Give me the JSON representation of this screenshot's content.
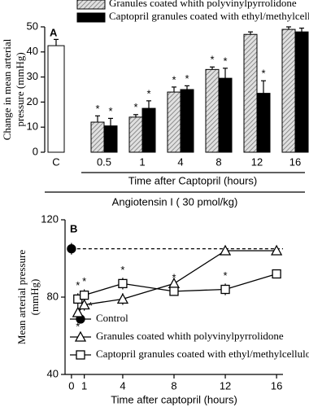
{
  "chart_data": [
    {
      "type": "bar",
      "panel": "A",
      "categories": [
        "C",
        "0.5",
        "1",
        "4",
        "8",
        "12",
        "16"
      ],
      "series": [
        {
          "color": "#ffffff",
          "values": [
            42.5,
            null,
            null,
            null,
            null,
            null,
            null
          ],
          "errors": [
            2.5,
            null,
            null,
            null,
            null,
            null,
            null
          ],
          "marks": [
            null,
            null,
            null,
            null,
            null,
            null,
            null
          ]
        },
        {
          "name": "Granules coated whith polyvinylpyrrolidone",
          "color": "#c8c8c8",
          "pattern": "hatch",
          "values": [
            null,
            12,
            14,
            24,
            33,
            47,
            49
          ],
          "errors": [
            null,
            2.5,
            1,
            2,
            1,
            1,
            1
          ],
          "marks": [
            null,
            "*",
            "*",
            "*",
            "*",
            null,
            null
          ]
        },
        {
          "name": "Captopril granules coated with ethyl/methylcellulose",
          "color": "#000000",
          "values": [
            null,
            10.5,
            17.5,
            25,
            29.5,
            23.5,
            48
          ],
          "errors": [
            null,
            3,
            3,
            1.5,
            4,
            5,
            1.5
          ],
          "marks": [
            null,
            "*",
            "*",
            "*",
            "*",
            "*",
            null
          ]
        }
      ],
      "ylabel": [
        "Change in mean arterial",
        "pressure (mmHg)"
      ],
      "xlabel": "Time after Captopril (hours)",
      "note": "Angiotensin I ( 30 pmol/kg)",
      "ylim": [
        0,
        50
      ],
      "yticks": [
        0,
        10,
        20,
        30,
        40,
        50
      ]
    },
    {
      "type": "line",
      "panel": "B",
      "series": [
        {
          "name": "Control",
          "color": "#000000",
          "marker": "circle",
          "filled": true,
          "extend": "dashed",
          "x": [
            0
          ],
          "values": [
            105
          ],
          "errors": [
            3
          ],
          "marks": [
            null
          ]
        },
        {
          "name": "Granules coated whith polyvinylpyrrolidone",
          "color": "#000000",
          "marker": "triangle",
          "filled": false,
          "x": [
            0.5,
            1,
            4,
            8,
            12,
            16
          ],
          "values": [
            72,
            76,
            79,
            87,
            104,
            104
          ],
          "errors": [
            4,
            3,
            3,
            3,
            2,
            2
          ],
          "marks": [
            "*",
            "*",
            null,
            null,
            null,
            null
          ]
        },
        {
          "name": "Captopril granules coated with ethyl/methylcellulose",
          "color": "#000000",
          "marker": "square",
          "filled": false,
          "x": [
            0.5,
            1,
            4,
            8,
            12,
            16
          ],
          "values": [
            79,
            81,
            87,
            83,
            84,
            92
          ],
          "errors": [
            3,
            3,
            3,
            2,
            3,
            2
          ],
          "marks": [
            "*",
            "*",
            "*",
            "*",
            "*",
            null
          ]
        }
      ],
      "ylabel": [
        "Mean arterial pressure",
        "(mmHg)"
      ],
      "xlabel": "Time after captopril (hours)",
      "xlim": [
        -0.5,
        16.5
      ],
      "xticks": [
        0,
        1,
        4,
        8,
        12,
        16
      ],
      "ylim": [
        40,
        120
      ],
      "yticks": [
        40,
        80,
        120
      ]
    }
  ]
}
